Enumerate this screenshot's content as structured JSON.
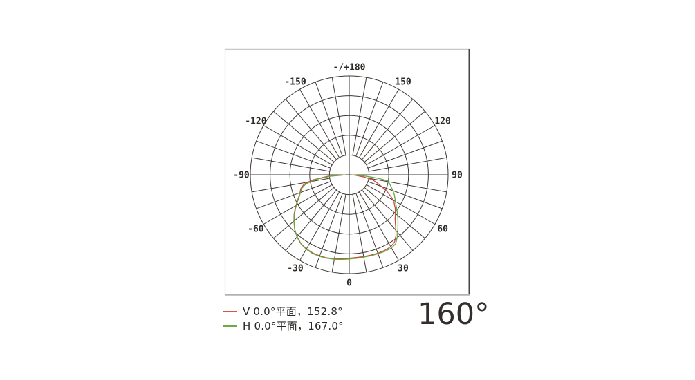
{
  "summary": {
    "beam_angle": "160°"
  },
  "legend": {
    "items": [
      {
        "label": "V 0.0°平面，152.8°",
        "color": "#d9534a"
      },
      {
        "label": "H 0.0°平面，167.0°",
        "color": "#6bab43"
      }
    ]
  },
  "chart_data": {
    "type": "polar-line",
    "title": "Luminous intensity distribution (beam angle 160°)",
    "angle_axis": {
      "unit": "degrees",
      "zero_position": "bottom",
      "tick_step_deg": 10,
      "label_step_deg": 30,
      "labels": [
        {
          "angle_deg": 180,
          "text": "-/+180"
        },
        {
          "angle_deg": 150,
          "text": "150"
        },
        {
          "angle_deg": 120,
          "text": "120"
        },
        {
          "angle_deg": 90,
          "text": "90"
        },
        {
          "angle_deg": 60,
          "text": "60"
        },
        {
          "angle_deg": 30,
          "text": "30"
        },
        {
          "angle_deg": 0,
          "text": "0"
        },
        {
          "angle_deg": -30,
          "text": "-30"
        },
        {
          "angle_deg": -60,
          "text": "-60"
        },
        {
          "angle_deg": -90,
          "text": "-90"
        },
        {
          "angle_deg": -120,
          "text": "-120"
        },
        {
          "angle_deg": -150,
          "text": "-150"
        }
      ]
    },
    "radial_axis": {
      "normalized": true,
      "rings": [
        0.2,
        0.4,
        0.6,
        0.8,
        1.0
      ]
    },
    "grid_color": "#3d3835",
    "series": [
      {
        "name": "V 0.0°平面",
        "beam_angle_deg": 152.8,
        "color": "#c9493f",
        "points": [
          [
            -90,
            0.03
          ],
          [
            -86,
            0.22
          ],
          [
            -82,
            0.38
          ],
          [
            -78,
            0.47
          ],
          [
            -74,
            0.51
          ],
          [
            -70,
            0.53
          ],
          [
            -66,
            0.56
          ],
          [
            -62,
            0.6
          ],
          [
            -58,
            0.645
          ],
          [
            -54,
            0.69
          ],
          [
            -50,
            0.73
          ],
          [
            -45,
            0.78
          ],
          [
            -40,
            0.82
          ],
          [
            -35,
            0.85
          ],
          [
            -30,
            0.866
          ],
          [
            -25,
            0.873
          ],
          [
            -20,
            0.874
          ],
          [
            -15,
            0.87
          ],
          [
            -10,
            0.862
          ],
          [
            -5,
            0.852
          ],
          [
            0,
            0.844
          ],
          [
            5,
            0.84
          ],
          [
            10,
            0.84
          ],
          [
            15,
            0.842
          ],
          [
            20,
            0.845
          ],
          [
            25,
            0.845
          ],
          [
            30,
            0.84
          ],
          [
            34,
            0.82
          ],
          [
            38,
            0.77
          ],
          [
            42,
            0.7
          ],
          [
            46,
            0.645
          ],
          [
            50,
            0.61
          ],
          [
            54,
            0.575
          ],
          [
            58,
            0.535
          ],
          [
            62,
            0.485
          ],
          [
            66,
            0.42
          ],
          [
            70,
            0.35
          ],
          [
            74,
            0.29
          ],
          [
            78,
            0.24
          ],
          [
            82,
            0.14
          ],
          [
            86,
            0.06
          ],
          [
            90,
            0.02
          ]
        ]
      },
      {
        "name": "H 0.0°平面",
        "beam_angle_deg": 167.0,
        "color": "#6ba63c",
        "points": [
          [
            -90,
            0.03
          ],
          [
            -86,
            0.18
          ],
          [
            -82,
            0.35
          ],
          [
            -78,
            0.45
          ],
          [
            -74,
            0.5
          ],
          [
            -70,
            0.525
          ],
          [
            -66,
            0.555
          ],
          [
            -62,
            0.595
          ],
          [
            -58,
            0.64
          ],
          [
            -54,
            0.685
          ],
          [
            -50,
            0.73
          ],
          [
            -45,
            0.78
          ],
          [
            -40,
            0.822
          ],
          [
            -35,
            0.852
          ],
          [
            -30,
            0.87
          ],
          [
            -25,
            0.878
          ],
          [
            -20,
            0.878
          ],
          [
            -15,
            0.874
          ],
          [
            -10,
            0.868
          ],
          [
            -5,
            0.86
          ],
          [
            0,
            0.852
          ],
          [
            5,
            0.848
          ],
          [
            10,
            0.846
          ],
          [
            15,
            0.848
          ],
          [
            20,
            0.85
          ],
          [
            25,
            0.855
          ],
          [
            30,
            0.855
          ],
          [
            34,
            0.84
          ],
          [
            38,
            0.79
          ],
          [
            42,
            0.735
          ],
          [
            46,
            0.685
          ],
          [
            50,
            0.64
          ],
          [
            54,
            0.595
          ],
          [
            58,
            0.555
          ],
          [
            62,
            0.525
          ],
          [
            66,
            0.5
          ],
          [
            70,
            0.47
          ],
          [
            74,
            0.44
          ],
          [
            78,
            0.415
          ],
          [
            81,
            0.4
          ],
          [
            83,
            0.3
          ],
          [
            85,
            0.18
          ],
          [
            87,
            0.09
          ],
          [
            90,
            0.02
          ]
        ]
      }
    ],
    "frame": {
      "border_top_color": "#c8c8c8",
      "border_left_color": "#8f8f8f",
      "border_right_color": "#4a4442",
      "border_bottom_color": "#b2b2b2"
    }
  }
}
